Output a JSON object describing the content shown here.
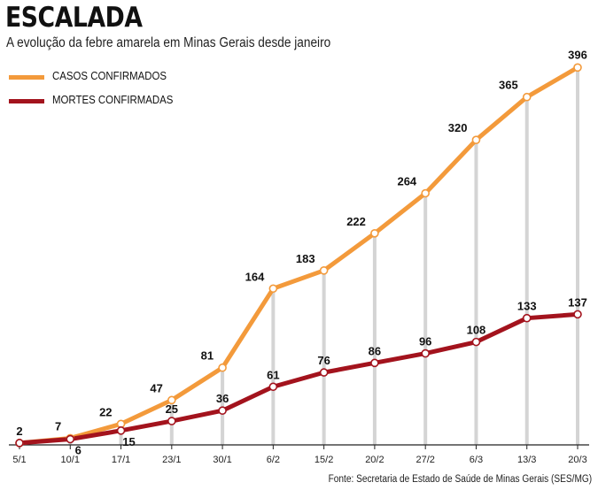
{
  "header": {
    "title": "ESCALADA",
    "subtitle": "A evolução da febre amarela em Minas Gerais desde janeiro"
  },
  "legend": [
    {
      "label": "CASOS CONFIRMADOS",
      "color": "#f39a3b"
    },
    {
      "label": "MORTES CONFIRMADAS",
      "color": "#a3131d"
    }
  ],
  "source": "Fonte: Secretaria de Estado de Saúde de Minas Gerais (SES/MG)",
  "chart_data": {
    "type": "line",
    "title": "ESCALADA",
    "subtitle": "A evolução da febre amarela em Minas Gerais desde janeiro",
    "xlabel": "",
    "ylabel": "",
    "categories": [
      "5/1",
      "10/1",
      "17/1",
      "23/1",
      "30/1",
      "6/2",
      "15/2",
      "20/2",
      "27/2",
      "6/3",
      "13/3",
      "20/3"
    ],
    "series": [
      {
        "name": "CASOS CONFIRMADOS",
        "color": "#f39a3b",
        "values": [
          2,
          7,
          22,
          47,
          81,
          164,
          183,
          222,
          264,
          320,
          365,
          396
        ]
      },
      {
        "name": "MORTES CONFIRMADAS",
        "color": "#a3131d",
        "values": [
          2,
          6,
          15,
          25,
          36,
          61,
          76,
          86,
          96,
          108,
          133,
          137
        ]
      }
    ],
    "ylim": [
      0,
      400
    ],
    "grid": "vertical",
    "legend_position": "top-left"
  }
}
